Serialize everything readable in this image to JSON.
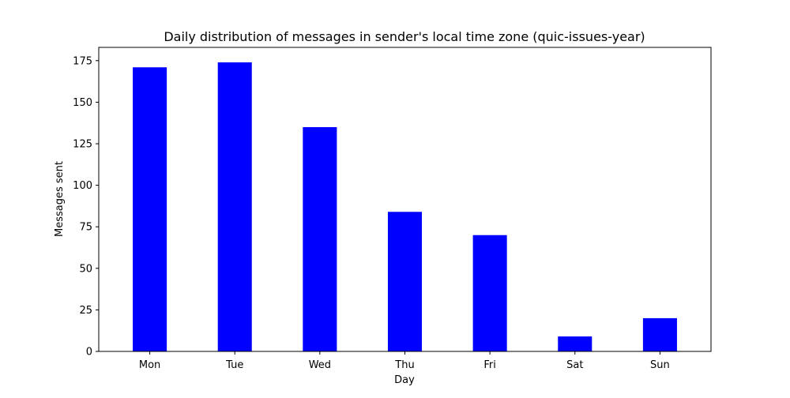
{
  "chart_data": {
    "type": "bar",
    "title": "Daily distribution of messages in sender's local time zone (quic-issues-year)",
    "xlabel": "Day",
    "ylabel": "Messages sent",
    "categories": [
      "Mon",
      "Tue",
      "Wed",
      "Thu",
      "Fri",
      "Sat",
      "Sun"
    ],
    "values": [
      171,
      174,
      135,
      84,
      70,
      9,
      20
    ],
    "ylim": [
      0,
      183
    ],
    "yticks": [
      0,
      25,
      50,
      75,
      100,
      125,
      150,
      175
    ],
    "grid": false,
    "bar_color": "#0000ff"
  }
}
